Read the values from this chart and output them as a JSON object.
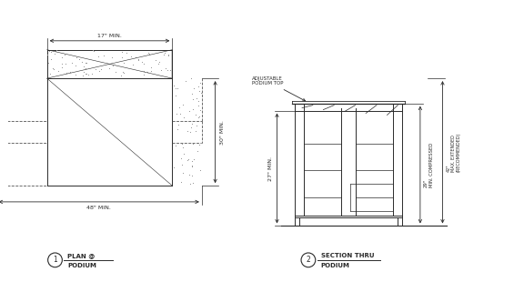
{
  "bg_color": "#ffffff",
  "line_color": "#2a2a2a",
  "dashed_color": "#555555",
  "dim_color": "#2a2a2a",
  "label1": "PLAN @\nPODIUM",
  "label2": "SECTION THRU\nPODIUM",
  "dim_17": "17\" MIN.",
  "dim_30": "30\" MIN.",
  "dim_48": "48\" MIN.",
  "dim_27": "27\" MIN.",
  "dim_29": "29\"\nMIN. COMPRESSED",
  "dim_42": "42\"\nMAX. EXTENDED\n(RECOMMENDED)",
  "adj_label": "ADJUSTABLE\nPODIUM TOP"
}
